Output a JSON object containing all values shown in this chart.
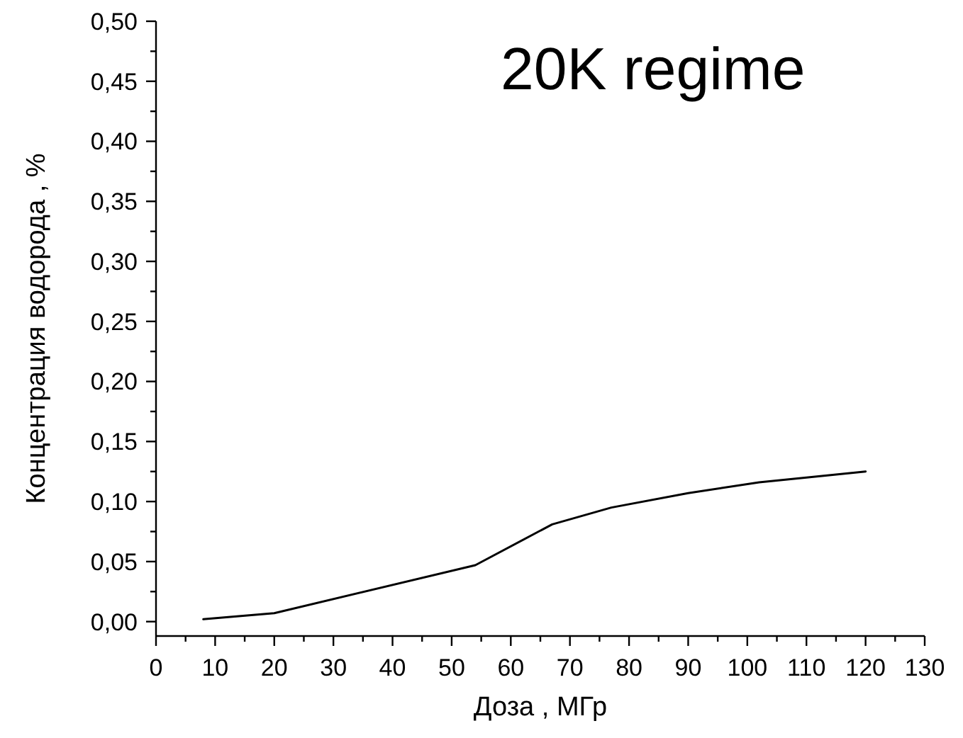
{
  "chart_data": {
    "type": "line",
    "title": "20K regime",
    "xlabel": "Доза , МГр",
    "ylabel": "Концентрация водорода , %",
    "x": [
      8,
      20,
      54,
      67,
      77,
      90,
      102,
      110,
      120
    ],
    "series": [
      {
        "color": "#000000",
        "values": [
          0.002,
          0.007,
          0.047,
          0.081,
          0.095,
          0.107,
          0.116,
          0.12,
          0.125
        ]
      }
    ],
    "xlim": [
      0,
      130
    ],
    "xticks": [
      0,
      {
        "value": 5,
        "label": null
      },
      10,
      {
        "value": 15,
        "label": null
      },
      20,
      {
        "value": 25,
        "label": null
      },
      30,
      {
        "value": 35,
        "label": null
      },
      40,
      {
        "value": 45,
        "label": null
      },
      50,
      {
        "value": 55,
        "label": null
      },
      60,
      {
        "value": 65,
        "label": null
      },
      70,
      {
        "value": 75,
        "label": null
      },
      80,
      {
        "value": 85,
        "label": null
      },
      90,
      {
        "value": 95,
        "label": null
      },
      100,
      {
        "value": 105,
        "label": null
      },
      110,
      {
        "value": 115,
        "label": null
      },
      120,
      {
        "value": 125,
        "label": null
      },
      130
    ],
    "ylim": [
      -0.012,
      0.5
    ],
    "yticks": [
      {
        "value": 0,
        "label": "0,00"
      },
      {
        "value": 0.025,
        "label": null
      },
      {
        "value": 0.05,
        "label": "0,05"
      },
      {
        "value": 0.075,
        "label": null
      },
      {
        "value": 0.1,
        "label": "0,10"
      },
      {
        "value": 0.125,
        "label": null
      },
      {
        "value": 0.15,
        "label": "0,15"
      },
      {
        "value": 0.175,
        "label": null
      },
      {
        "value": 0.2,
        "label": "0,20"
      },
      {
        "value": 0.225,
        "label": null
      },
      {
        "value": 0.25,
        "label": "0,25"
      },
      {
        "value": 0.275,
        "label": null
      },
      {
        "value": 0.3,
        "label": "0,30"
      },
      {
        "value": 0.325,
        "label": null
      },
      {
        "value": 0.35,
        "label": "0,35"
      },
      {
        "value": 0.375,
        "label": null
      },
      {
        "value": 0.4,
        "label": "0,40"
      },
      {
        "value": 0.425,
        "label": null
      },
      {
        "value": 0.45,
        "label": "0,45"
      },
      {
        "value": 0.475,
        "label": null
      },
      {
        "value": 0.5,
        "label": "0,50"
      }
    ],
    "line_style": "solid"
  }
}
